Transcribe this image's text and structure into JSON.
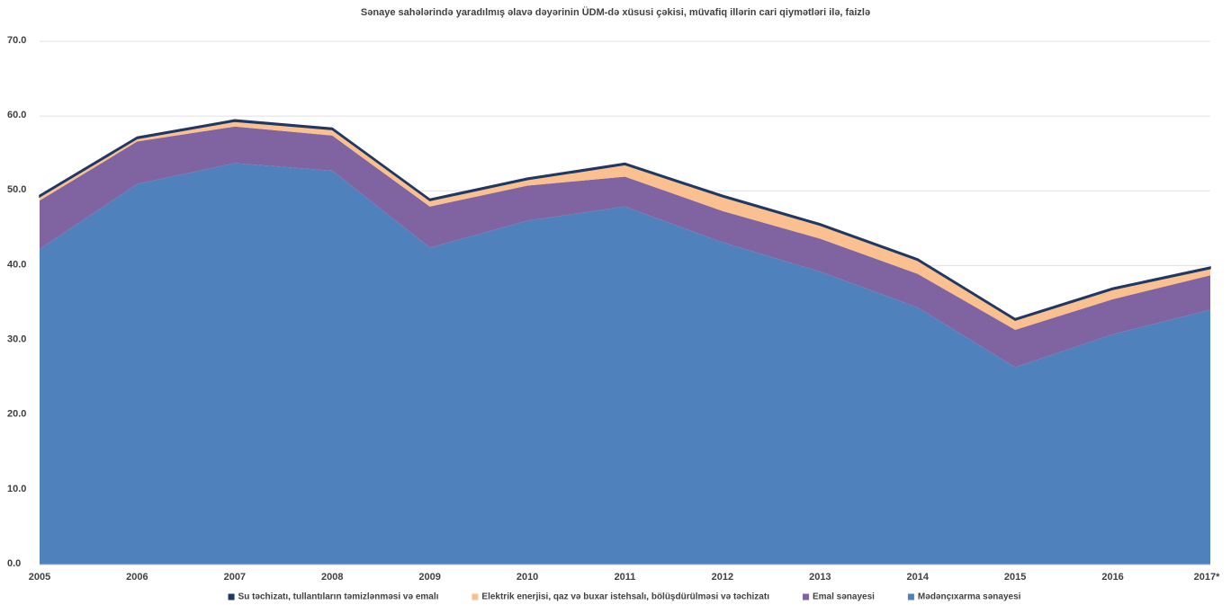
{
  "chart_data": {
    "type": "stacked_area",
    "title": "Sənaye sahələrində yaradılmış əlavə dəyərinin ÜDM-də xüsusi çəkisi, müvafiq illərin cari qiymətləri ilə, faizlə",
    "categories": [
      "2005",
      "2006",
      "2007",
      "2008",
      "2009",
      "2010",
      "2011",
      "2012",
      "2013",
      "2014",
      "2015",
      "2016",
      "2017*"
    ],
    "series": [
      {
        "name": "Su təchizatı, tullantıların təmizlənməsi və emalı",
        "color": "#1f3864",
        "values": [
          0.2,
          0.2,
          0.2,
          0.2,
          0.2,
          0.2,
          0.2,
          0.2,
          0.2,
          0.2,
          0.2,
          0.2,
          0.2
        ]
      },
      {
        "name": "Elektrik enerjisi, qaz və buxar istehsalı, bölüşdürülməsi və təchizatı",
        "color": "#fac090",
        "values": [
          0.5,
          0.4,
          0.7,
          0.8,
          0.8,
          0.8,
          1.6,
          1.9,
          1.8,
          1.8,
          1.3,
          1.3,
          0.9
        ]
      },
      {
        "name": "Emal sənayesi",
        "color": "#8064a2",
        "values": [
          6.5,
          5.7,
          4.9,
          4.7,
          5.5,
          4.7,
          4.0,
          4.2,
          4.4,
          4.5,
          5.0,
          4.7,
          4.6
        ]
      },
      {
        "name": "Mədənçıxarma sənayesi",
        "color": "#4f81bd",
        "values": [
          42.2,
          50.9,
          53.7,
          52.7,
          42.4,
          46.0,
          47.9,
          43.1,
          39.2,
          34.4,
          26.4,
          30.8,
          34.1
        ]
      }
    ],
    "ylim": [
      0,
      70
    ],
    "yticks": [
      {
        "value": 0,
        "label": "0.0"
      },
      {
        "value": 10,
        "label": "10.0"
      },
      {
        "value": 20,
        "label": "20.0"
      },
      {
        "value": 30,
        "label": "30.0"
      },
      {
        "value": 40,
        "label": "40.0"
      },
      {
        "value": 50,
        "label": "50.0"
      },
      {
        "value": 60,
        "label": "60.0"
      },
      {
        "value": 70,
        "label": "70.0"
      }
    ],
    "grid": true,
    "legend": "bottom"
  }
}
